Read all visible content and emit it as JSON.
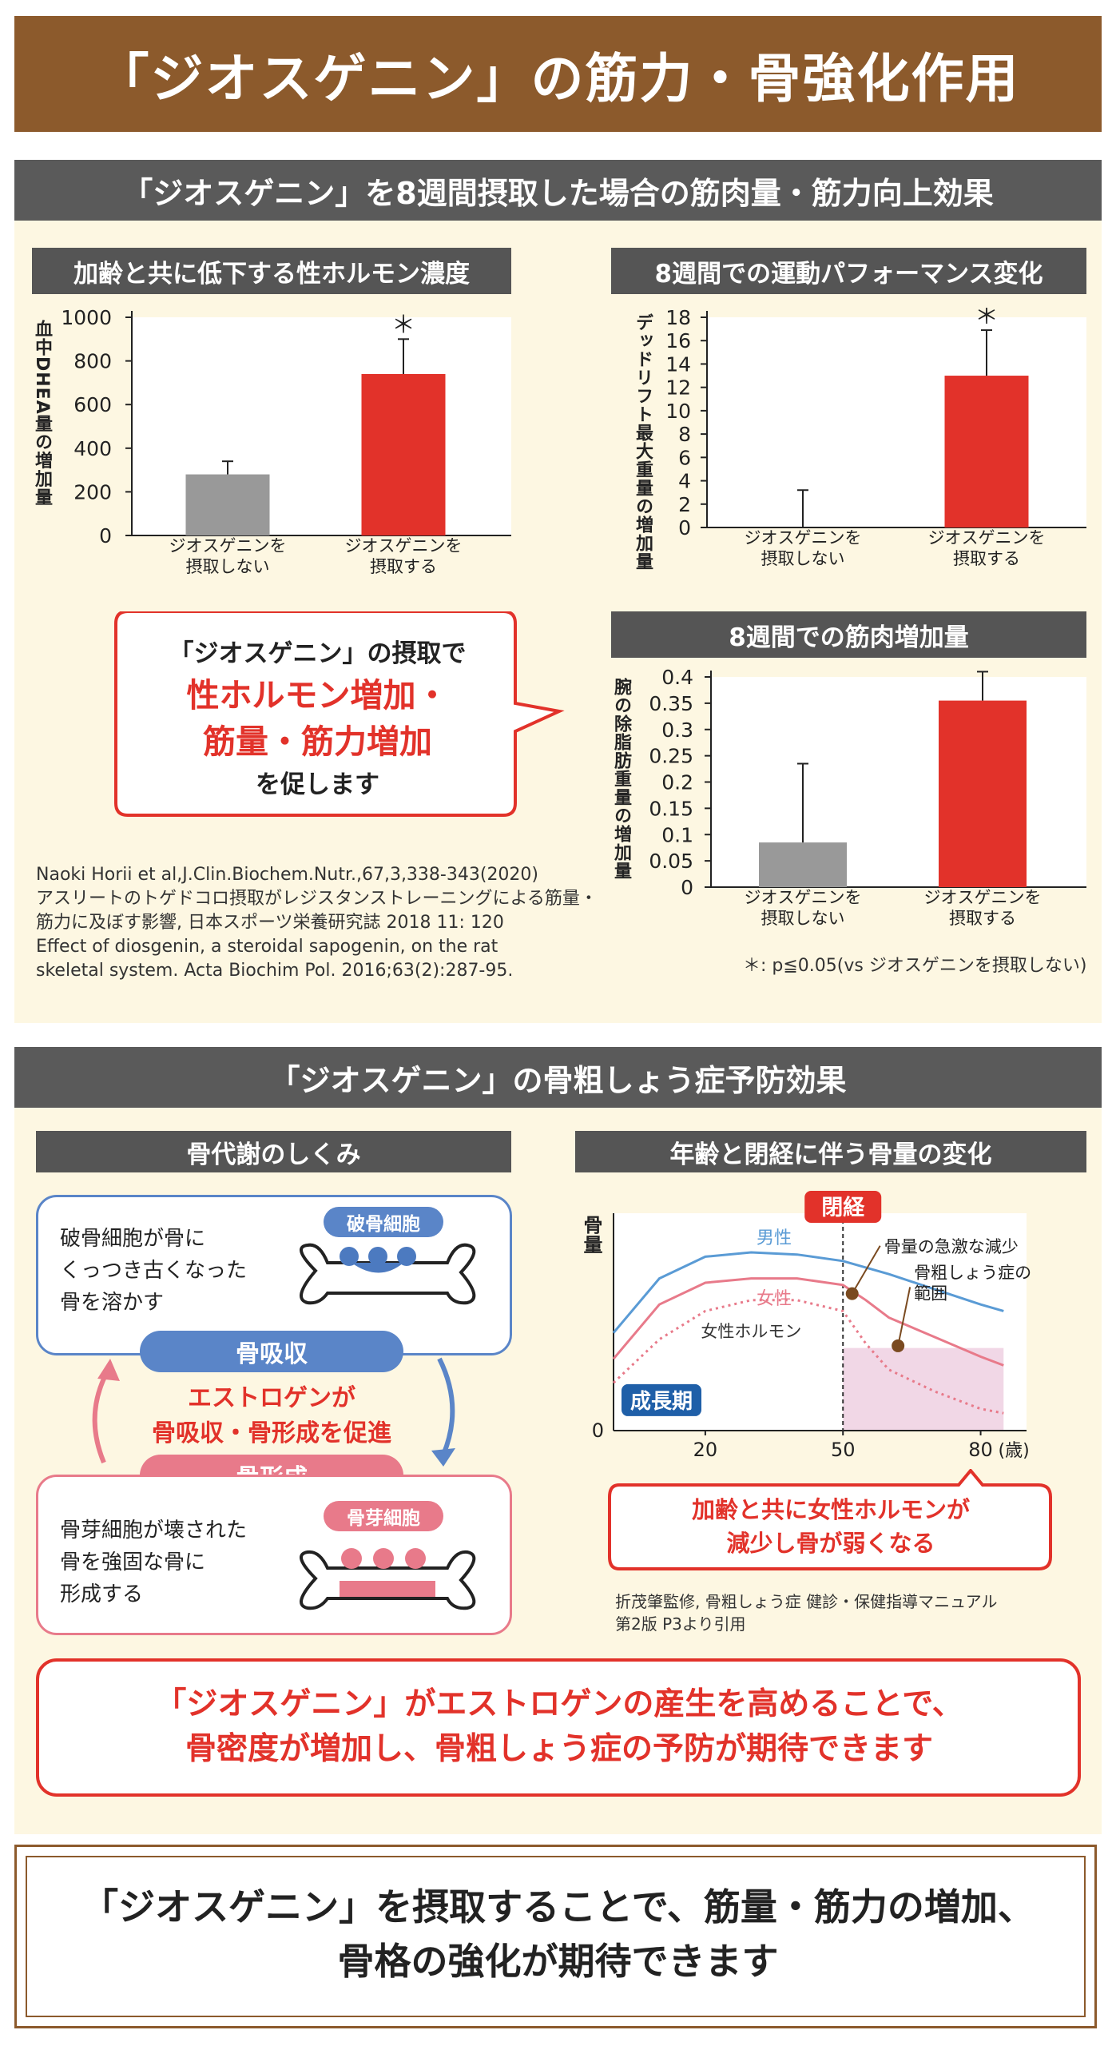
{
  "title": "「ジオスゲニン」の筋力・骨強化作用",
  "section1": {
    "header": "「ジオスゲニン」を8週間摂取した場合の筋肉量・筋力向上効果",
    "bubble": {
      "line1": "「ジオスゲニン」の摂取で",
      "line2": "性ホルモン増加・",
      "line3": "筋量・筋力増加",
      "line4": "を促します"
    },
    "references": [
      "Naoki Horii et al,J.Clin.Biochem.Nutr.,67,3,338-343(2020)",
      "アスリートのトゲドコロ摂取がレジスタンストレーニングによる筋量・",
      "筋力に及ぼす影響, 日本スポーツ栄養研究誌 2018 11: 120",
      "Effect of diosgenin, a steroidal sapogenin, on the rat",
      "skeletal system. Acta Biochim Pol. 2016;63(2):287-95."
    ],
    "footnote": "＊: p≦0.05(vs ジオスゲニンを摂取しない)"
  },
  "chart_data": [
    {
      "type": "bar",
      "title": "加齢と共に低下する性ホルモン濃度",
      "ylabel": "血中DHEA量の増加量",
      "ylim": [
        0,
        1000
      ],
      "yticks": [
        "1000",
        "800",
        "600",
        "400",
        "200",
        "0"
      ],
      "ytick_values": [
        1000,
        800,
        600,
        400,
        200,
        0
      ],
      "categories": [
        [
          "ジオスゲニンを",
          "摂取しない"
        ],
        [
          "ジオスゲニンを",
          "摂取する"
        ]
      ],
      "values": [
        280,
        740
      ],
      "errors": [
        60,
        160
      ],
      "colors": [
        "#999999",
        "#e2322a"
      ],
      "significance": [
        "",
        "＊"
      ]
    },
    {
      "type": "bar",
      "title": "8週間での運動パフォーマンス変化",
      "ylabel": "デッドリフト最大重量の増加量",
      "ylim": [
        0,
        18
      ],
      "yticks": [
        "18",
        "16",
        "14",
        "12",
        "10",
        "8",
        "6",
        "4",
        "2",
        "0"
      ],
      "ytick_values": [
        18,
        16,
        14,
        12,
        10,
        8,
        6,
        4,
        2,
        0
      ],
      "categories": [
        [
          "ジオスゲニンを",
          "摂取しない"
        ],
        [
          "ジオスゲニンを",
          "摂取する"
        ]
      ],
      "values": [
        0,
        13
      ],
      "errors": [
        3.2,
        3.9
      ],
      "colors": [
        "#999999",
        "#e2322a"
      ],
      "significance": [
        "",
        "＊"
      ]
    },
    {
      "type": "bar",
      "title": "8週間での筋肉増加量",
      "ylabel": "腕の除脂肪重量の増加量",
      "ylim": [
        0,
        0.4
      ],
      "yticks": [
        "0.4",
        "0.35",
        "0.3",
        "0.25",
        "0.2",
        "0.15",
        "0.1",
        "0.05",
        "0"
      ],
      "ytick_values": [
        0.4,
        0.35,
        0.3,
        0.25,
        0.2,
        0.15,
        0.1,
        0.05,
        0
      ],
      "categories": [
        [
          "ジオスゲニンを",
          "摂取しない"
        ],
        [
          "ジオスゲニンを",
          "摂取する"
        ]
      ],
      "values": [
        0.085,
        0.355
      ],
      "errors": [
        0.15,
        0.055
      ],
      "colors": [
        "#999999",
        "#e2322a"
      ],
      "significance": [
        "",
        "＊"
      ]
    },
    {
      "type": "line",
      "title": "年齢と閉経に伴う骨量の変化",
      "ylabel": "骨量",
      "xlabel": "(歳)",
      "xticks": [
        "20",
        "50",
        "80"
      ],
      "ytick_zero": "0",
      "xlim": [
        0,
        90
      ],
      "ylim": [
        0,
        100
      ],
      "series": [
        {
          "name": "男性",
          "x": [
            0,
            10,
            20,
            30,
            40,
            50,
            60,
            70,
            80,
            85
          ],
          "y": [
            45,
            70,
            80,
            82,
            81,
            78,
            72,
            65,
            58,
            55
          ],
          "color": "#5a9bd5"
        },
        {
          "name": "女性",
          "x": [
            0,
            10,
            20,
            30,
            40,
            50,
            55,
            60,
            70,
            80,
            85
          ],
          "y": [
            33,
            58,
            68,
            70,
            70,
            67,
            60,
            52,
            43,
            34,
            30
          ],
          "color": "#e87a8a"
        },
        {
          "name": "女性ホルモン",
          "x": [
            0,
            10,
            20,
            30,
            40,
            50,
            55,
            60,
            70,
            80,
            85
          ],
          "y": [
            22,
            42,
            55,
            60,
            60,
            55,
            40,
            28,
            18,
            10,
            8
          ],
          "color": "#e87a8a",
          "dashed": true
        }
      ],
      "annotations": {
        "menopause": "閉経",
        "rapid_loss": "骨量の急激な減少",
        "osteoporosis": [
          "骨粗しょう症の",
          "範囲"
        ],
        "growth": "成長期"
      }
    }
  ],
  "section2": {
    "header": "「ジオスゲニン」の骨粗しょう症予防効果",
    "left_title": "骨代謝のしくみ",
    "osteoclast_tag": "破骨細胞",
    "osteoclast_text": [
      "破骨細胞が骨に",
      "くっつき古くなった",
      "骨を溶かす"
    ],
    "resorption_label": "骨吸収",
    "estrogen_text": [
      "エストロゲンが",
      "骨吸収・骨形成を促進"
    ],
    "formation_label": "骨形成",
    "osteoblast_tag": "骨芽細胞",
    "osteoblast_text": [
      "骨芽細胞が壊された",
      "骨を強固な骨に",
      "形成する"
    ],
    "right_bubble": [
      "加齢と共に女性ホルモンが",
      "減少し骨が弱くなる"
    ],
    "citation": [
      "折茂肇監修, 骨粗しょう症 健診・保健指導マニュアル",
      "第2版 P3より引用"
    ],
    "conclusion": [
      "「ジオスゲニン」がエストロゲンの産生を高めることで、",
      "骨密度が増加し、骨粗しょう症の予防が期待できます"
    ]
  },
  "final": [
    "「ジオスゲニン」を摂取することで、筋量・筋力の増加、",
    "骨格の強化が期待できます"
  ],
  "colors": {
    "brand_brown": "#8c5a2c",
    "accent_red": "#e2322a",
    "header_gray": "#5a5a5a",
    "blue": "#5a85c8",
    "pink": "#e87a8a"
  }
}
